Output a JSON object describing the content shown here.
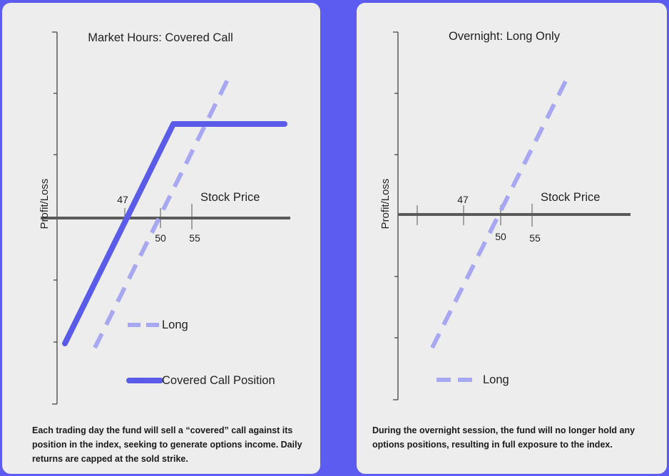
{
  "colors": {
    "background": "#5c5cf0",
    "panel": "#ededed",
    "axis": "#5a5a5a",
    "covered_call": "#5b5bea",
    "long": "#a7a7f2"
  },
  "left_panel": {
    "title": "Market Hours: Covered Call",
    "y_axis_label": "Profit/Loss",
    "x_axis_label": "Stock Price",
    "tick_labels": [
      "47",
      "50",
      "55"
    ],
    "legend": [
      "Long",
      "Covered Call Position"
    ],
    "caption": "Each trading day the fund will sell a “covered” call against its position in the index, seeking to generate options income. Daily returns are capped at the sold strike."
  },
  "right_panel": {
    "title": "Overnight: Long Only",
    "y_axis_label": "Profit/Loss",
    "x_axis_label": "Stock Price",
    "tick_labels": [
      "47",
      "50",
      "55"
    ],
    "legend": [
      "Long"
    ],
    "caption": "During the overnight session, the fund will no longer hold any options positions, resulting in full exposure to the index."
  }
}
